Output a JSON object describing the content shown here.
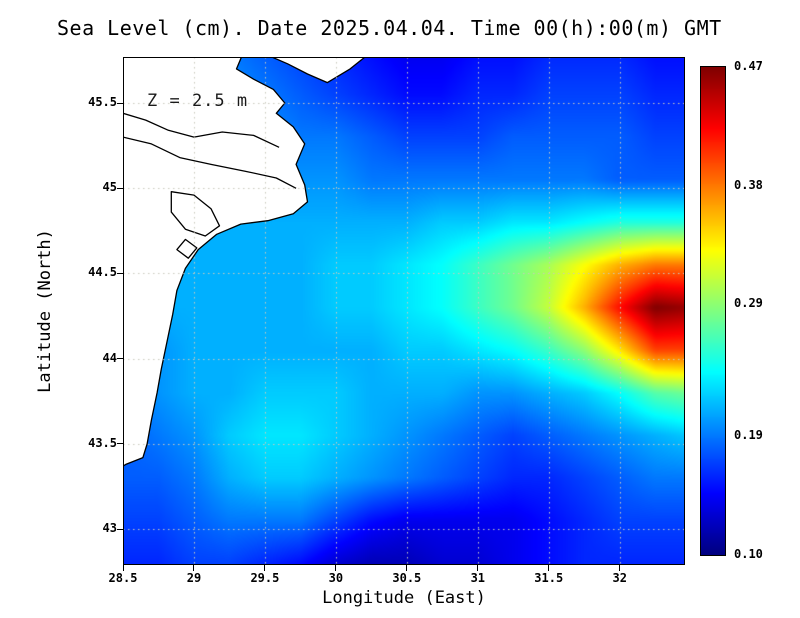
{
  "title": "Sea Level (cm). Date 2025.04.04. Time 00(h):00(m) GMT",
  "annotation": "Z = 2.5 m",
  "axes": {
    "xlabel": "Longitude (East)",
    "ylabel": "Latitude (North)",
    "xtick_labels": [
      "28.5",
      "29",
      "29.5",
      "30",
      "30.5",
      "31",
      "31.5",
      "32"
    ],
    "ytick_labels": [
      "43",
      "43.5",
      "44",
      "44.5",
      "45",
      "45.5"
    ]
  },
  "colorbar": {
    "min": 0.1,
    "max": 0.47,
    "tick_values": [
      0.47,
      0.38,
      0.29,
      0.19,
      0.1
    ],
    "tick_labels": [
      "0.47",
      "0.38",
      "0.29",
      "0.19",
      "0.10"
    ]
  },
  "chart_data": {
    "type": "heatmap",
    "title": "Sea Level (cm). Date 2025.04.04. Time 00(h):00(m) GMT",
    "xlabel": "Longitude (East)",
    "ylabel": "Latitude (North)",
    "annotation": "Z = 2.5 m",
    "colormap": "jet",
    "grid": "dotted",
    "x_range": [
      28.5,
      32.46
    ],
    "y_range": [
      42.79,
      45.77
    ],
    "xticks": [
      28.5,
      29,
      29.5,
      30,
      30.5,
      31,
      31.5,
      32
    ],
    "yticks": [
      43,
      43.5,
      44,
      44.5,
      45,
      45.5
    ],
    "value_range": [
      0.1,
      0.47
    ],
    "lon": [
      28.5,
      28.75,
      29.0,
      29.25,
      29.5,
      29.75,
      30.0,
      30.25,
      30.5,
      30.75,
      31.0,
      31.25,
      31.5,
      31.75,
      32.0,
      32.25,
      32.5
    ],
    "lat": [
      45.8,
      45.55,
      45.3,
      45.05,
      44.8,
      44.55,
      44.3,
      44.05,
      43.8,
      43.55,
      43.3,
      43.05,
      42.8
    ],
    "values": [
      [
        0.2,
        0.2,
        0.2,
        0.19,
        0.18,
        0.17,
        0.16,
        0.15,
        0.14,
        0.14,
        0.15,
        0.15,
        0.16,
        0.16,
        0.16,
        0.15,
        0.15
      ],
      [
        0.21,
        0.21,
        0.2,
        0.2,
        0.19,
        0.18,
        0.17,
        0.16,
        0.15,
        0.15,
        0.16,
        0.16,
        0.17,
        0.17,
        0.17,
        0.16,
        0.16
      ],
      [
        0.21,
        0.21,
        0.21,
        0.2,
        0.2,
        0.19,
        0.19,
        0.18,
        0.17,
        0.17,
        0.17,
        0.18,
        0.18,
        0.18,
        0.18,
        0.17,
        0.17
      ],
      [
        0.21,
        0.21,
        0.21,
        0.21,
        0.2,
        0.2,
        0.2,
        0.19,
        0.19,
        0.19,
        0.19,
        0.19,
        0.19,
        0.19,
        0.18,
        0.18,
        0.18
      ],
      [
        0.21,
        0.21,
        0.21,
        0.21,
        0.21,
        0.21,
        0.21,
        0.21,
        0.21,
        0.22,
        0.22,
        0.23,
        0.23,
        0.24,
        0.25,
        0.25,
        0.25
      ],
      [
        0.21,
        0.21,
        0.21,
        0.21,
        0.21,
        0.21,
        0.22,
        0.22,
        0.23,
        0.24,
        0.26,
        0.28,
        0.3,
        0.33,
        0.36,
        0.38,
        0.38
      ],
      [
        0.2,
        0.21,
        0.21,
        0.21,
        0.21,
        0.21,
        0.22,
        0.22,
        0.23,
        0.24,
        0.26,
        0.28,
        0.31,
        0.36,
        0.42,
        0.47,
        0.46
      ],
      [
        0.2,
        0.2,
        0.21,
        0.21,
        0.21,
        0.21,
        0.21,
        0.21,
        0.22,
        0.22,
        0.23,
        0.24,
        0.26,
        0.29,
        0.34,
        0.4,
        0.4
      ],
      [
        0.19,
        0.2,
        0.21,
        0.21,
        0.22,
        0.22,
        0.22,
        0.21,
        0.21,
        0.21,
        0.2,
        0.2,
        0.21,
        0.22,
        0.24,
        0.27,
        0.28
      ],
      [
        0.18,
        0.19,
        0.2,
        0.22,
        0.23,
        0.23,
        0.22,
        0.21,
        0.2,
        0.19,
        0.18,
        0.17,
        0.18,
        0.19,
        0.2,
        0.21,
        0.22
      ],
      [
        0.18,
        0.18,
        0.19,
        0.21,
        0.22,
        0.22,
        0.21,
        0.2,
        0.19,
        0.18,
        0.17,
        0.16,
        0.16,
        0.17,
        0.18,
        0.19,
        0.19
      ],
      [
        0.17,
        0.17,
        0.18,
        0.19,
        0.19,
        0.19,
        0.17,
        0.15,
        0.14,
        0.14,
        0.14,
        0.14,
        0.15,
        0.16,
        0.17,
        0.17,
        0.17
      ],
      [
        0.16,
        0.16,
        0.17,
        0.17,
        0.16,
        0.15,
        0.13,
        0.12,
        0.12,
        0.13,
        0.13,
        0.14,
        0.15,
        0.16,
        0.16,
        0.16,
        0.16
      ]
    ],
    "coastline": {
      "land": [
        [
          28.5,
          45.78
        ],
        [
          29.34,
          45.78
        ],
        [
          29.3,
          45.7
        ],
        [
          29.42,
          45.64
        ],
        [
          29.56,
          45.58
        ],
        [
          29.64,
          45.5
        ],
        [
          29.58,
          45.44
        ],
        [
          29.7,
          45.36
        ],
        [
          29.78,
          45.26
        ],
        [
          29.72,
          45.14
        ],
        [
          29.78,
          45.02
        ],
        [
          29.8,
          44.92
        ],
        [
          29.7,
          44.85
        ],
        [
          29.52,
          44.81
        ],
        [
          29.33,
          44.79
        ],
        [
          29.16,
          44.73
        ],
        [
          29.03,
          44.64
        ],
        [
          28.94,
          44.53
        ],
        [
          28.88,
          44.4
        ],
        [
          28.85,
          44.26
        ],
        [
          28.81,
          44.1
        ],
        [
          28.77,
          43.94
        ],
        [
          28.74,
          43.8
        ],
        [
          28.7,
          43.64
        ],
        [
          28.67,
          43.5
        ],
        [
          28.64,
          43.42
        ],
        [
          28.52,
          43.38
        ],
        [
          28.5,
          43.37
        ]
      ],
      "wedge": [
        [
          29.52,
          45.78
        ],
        [
          30.22,
          45.78
        ],
        [
          30.1,
          45.7
        ],
        [
          29.94,
          45.62
        ],
        [
          29.8,
          45.67
        ],
        [
          29.66,
          45.73
        ]
      ],
      "lakes": [
        [
          [
            28.84,
            44.98
          ],
          [
            29.0,
            44.96
          ],
          [
            29.12,
            44.88
          ],
          [
            29.18,
            44.78
          ],
          [
            29.08,
            44.72
          ],
          [
            28.94,
            44.76
          ],
          [
            28.84,
            44.86
          ]
        ],
        [
          [
            28.94,
            44.7
          ],
          [
            29.02,
            44.65
          ],
          [
            28.96,
            44.59
          ],
          [
            28.88,
            44.64
          ]
        ]
      ],
      "rivers": [
        [
          [
            28.5,
            45.44
          ],
          [
            28.66,
            45.4
          ],
          [
            28.82,
            45.34
          ],
          [
            29.0,
            45.3
          ],
          [
            29.2,
            45.33
          ],
          [
            29.42,
            45.31
          ],
          [
            29.6,
            45.24
          ]
        ],
        [
          [
            28.5,
            45.3
          ],
          [
            28.7,
            45.26
          ],
          [
            28.9,
            45.18
          ],
          [
            29.12,
            45.14
          ],
          [
            29.36,
            45.1
          ],
          [
            29.58,
            45.06
          ],
          [
            29.72,
            45.0
          ]
        ]
      ]
    }
  }
}
